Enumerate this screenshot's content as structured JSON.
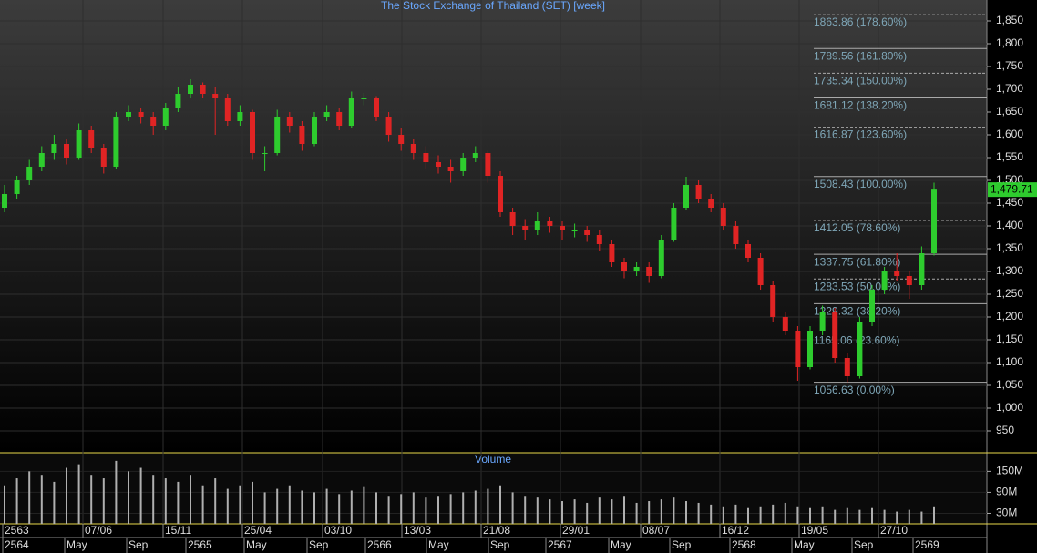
{
  "chart_data": {
    "type": "candlestick",
    "title": "The Stock Exchange of Thailand (SET) [week]",
    "up_color": "#2ecc2e",
    "down_color": "#e02424",
    "ylim": [
      902,
      1896
    ],
    "yticks": [
      950,
      {
        "value": 1000,
        "label": "1,000"
      },
      {
        "value": 1050,
        "label": "1,050"
      },
      {
        "value": 1100,
        "label": "1,100"
      },
      {
        "value": 1150,
        "label": "1,150"
      },
      {
        "value": 1200,
        "label": "1,200"
      },
      {
        "value": 1250,
        "label": "1,250"
      },
      {
        "value": 1300,
        "label": "1,300"
      },
      {
        "value": 1350,
        "label": "1,350"
      },
      {
        "value": 1400,
        "label": "1,400"
      },
      {
        "value": 1450,
        "label": "1,450"
      },
      {
        "value": 1500,
        "label": "1,500"
      },
      {
        "value": 1550,
        "label": "1,550"
      },
      {
        "value": 1600,
        "label": "1,600"
      },
      {
        "value": 1650,
        "label": "1,650"
      },
      {
        "value": 1700,
        "label": "1,700"
      },
      {
        "value": 1750,
        "label": "1,750"
      },
      {
        "value": 1800,
        "label": "1,800"
      },
      {
        "value": 1850,
        "label": "1,850"
      }
    ],
    "grid": true,
    "last": {
      "value": 1479.71,
      "label": "1,479.71"
    },
    "fib_levels": [
      {
        "value": 1863.86,
        "label": "1863.86 (178.60%)"
      },
      {
        "value": 1789.56,
        "label": "1789.56 (161.80%)"
      },
      {
        "value": 1735.34,
        "label": "1735.34 (150.00%)"
      },
      {
        "value": 1681.12,
        "label": "1681.12 (138.20%)"
      },
      {
        "value": 1616.87,
        "label": "1616.87 (123.60%)"
      },
      {
        "value": 1508.43,
        "label": "1508.43 (100.00%)"
      },
      {
        "value": 1412.05,
        "label": "1412.05 (78.60%)"
      },
      {
        "value": 1337.75,
        "label": "1337.75 (61.80%)"
      },
      {
        "value": 1283.53,
        "label": "1283.53 (50.00%)"
      },
      {
        "value": 1229.32,
        "label": "1229.32 (38.20%)"
      },
      {
        "value": 1165.06,
        "label": "1165.06 (23.60%)"
      },
      {
        "value": 1056.63,
        "label": "1056.63 (0.00%)"
      }
    ],
    "ohlc": [
      [
        1440,
        1490,
        1430,
        1470
      ],
      [
        1470,
        1510,
        1460,
        1500
      ],
      [
        1500,
        1545,
        1490,
        1530
      ],
      [
        1530,
        1575,
        1520,
        1560
      ],
      [
        1560,
        1600,
        1545,
        1580
      ],
      [
        1580,
        1590,
        1535,
        1550
      ],
      [
        1550,
        1625,
        1545,
        1610
      ],
      [
        1610,
        1620,
        1560,
        1570
      ],
      [
        1570,
        1580,
        1515,
        1530
      ],
      [
        1530,
        1650,
        1525,
        1640
      ],
      [
        1640,
        1665,
        1630,
        1650
      ],
      [
        1650,
        1660,
        1625,
        1640
      ],
      [
        1640,
        1650,
        1600,
        1620
      ],
      [
        1620,
        1670,
        1610,
        1660
      ],
      [
        1660,
        1705,
        1650,
        1690
      ],
      [
        1690,
        1722,
        1680,
        1710
      ],
      [
        1710,
        1715,
        1680,
        1690
      ],
      [
        1690,
        1705,
        1600,
        1680
      ],
      [
        1680,
        1690,
        1620,
        1630
      ],
      [
        1630,
        1665,
        1620,
        1650
      ],
      [
        1650,
        1655,
        1545,
        1560
      ],
      [
        1560,
        1575,
        1520,
        1560
      ],
      [
        1560,
        1655,
        1555,
        1640
      ],
      [
        1640,
        1650,
        1605,
        1620
      ],
      [
        1620,
        1630,
        1565,
        1580
      ],
      [
        1580,
        1650,
        1575,
        1640
      ],
      [
        1640,
        1665,
        1630,
        1650
      ],
      [
        1650,
        1660,
        1610,
        1620
      ],
      [
        1620,
        1695,
        1615,
        1680
      ],
      [
        1680,
        1692,
        1665,
        1680
      ],
      [
        1680,
        1685,
        1630,
        1640
      ],
      [
        1640,
        1650,
        1585,
        1600
      ],
      [
        1600,
        1615,
        1565,
        1580
      ],
      [
        1580,
        1590,
        1545,
        1560
      ],
      [
        1560,
        1575,
        1525,
        1540
      ],
      [
        1540,
        1555,
        1515,
        1530
      ],
      [
        1530,
        1545,
        1495,
        1520
      ],
      [
        1520,
        1560,
        1510,
        1550
      ],
      [
        1550,
        1575,
        1540,
        1560
      ],
      [
        1560,
        1565,
        1495,
        1510
      ],
      [
        1510,
        1520,
        1420,
        1430
      ],
      [
        1430,
        1440,
        1380,
        1400
      ],
      [
        1400,
        1415,
        1370,
        1390
      ],
      [
        1390,
        1430,
        1380,
        1410
      ],
      [
        1410,
        1420,
        1385,
        1400
      ],
      [
        1400,
        1410,
        1370,
        1390
      ],
      [
        1390,
        1405,
        1375,
        1390
      ],
      [
        1390,
        1400,
        1365,
        1380
      ],
      [
        1380,
        1390,
        1345,
        1360
      ],
      [
        1360,
        1370,
        1310,
        1320
      ],
      [
        1320,
        1330,
        1285,
        1300
      ],
      [
        1300,
        1320,
        1290,
        1310
      ],
      [
        1310,
        1320,
        1275,
        1290
      ],
      [
        1290,
        1380,
        1285,
        1370
      ],
      [
        1370,
        1450,
        1365,
        1440
      ],
      [
        1440,
        1508,
        1435,
        1490
      ],
      [
        1490,
        1500,
        1450,
        1460
      ],
      [
        1460,
        1470,
        1430,
        1440
      ],
      [
        1440,
        1450,
        1390,
        1400
      ],
      [
        1400,
        1410,
        1350,
        1360
      ],
      [
        1360,
        1370,
        1320,
        1330
      ],
      [
        1330,
        1340,
        1260,
        1270
      ],
      [
        1270,
        1280,
        1190,
        1200
      ],
      [
        1200,
        1210,
        1160,
        1170
      ],
      [
        1170,
        1180,
        1060,
        1090
      ],
      [
        1090,
        1180,
        1085,
        1170
      ],
      [
        1170,
        1225,
        1160,
        1210
      ],
      [
        1210,
        1220,
        1100,
        1110
      ],
      [
        1110,
        1120,
        1056.63,
        1070
      ],
      [
        1070,
        1200,
        1065,
        1190
      ],
      [
        1190,
        1270,
        1180,
        1260
      ],
      [
        1260,
        1310,
        1250,
        1300
      ],
      [
        1300,
        1340,
        1280,
        1290
      ],
      [
        1290,
        1300,
        1240,
        1270
      ],
      [
        1270,
        1355,
        1260,
        1340
      ],
      [
        1340,
        1495,
        1335,
        1479.71
      ]
    ],
    "volume": {
      "title": "Volume",
      "ylim": [
        0,
        203
      ],
      "yticks": [
        {
          "value": 30,
          "label": "30M"
        },
        {
          "value": 90,
          "label": "90M"
        },
        {
          "value": 150,
          "label": "150M"
        }
      ],
      "values": [
        110,
        130,
        150,
        140,
        120,
        160,
        170,
        140,
        130,
        180,
        150,
        160,
        140,
        130,
        120,
        140,
        110,
        130,
        100,
        110,
        120,
        90,
        100,
        110,
        95,
        90,
        100,
        85,
        95,
        105,
        90,
        80,
        85,
        90,
        75,
        80,
        85,
        90,
        95,
        100,
        110,
        90,
        80,
        75,
        70,
        65,
        70,
        60,
        75,
        70,
        80,
        60,
        65,
        70,
        75,
        65,
        60,
        55,
        50,
        55,
        45,
        50,
        55,
        60,
        50,
        45,
        50,
        40,
        45,
        40,
        45,
        40,
        35,
        40,
        35,
        50
      ]
    },
    "x_labels_top": [
      "2563",
      "07/06",
      "15/11",
      "25/04",
      "03/10",
      "13/03",
      "21/08",
      "29/01",
      "08/07",
      "16/12",
      "19/05",
      "27/10"
    ],
    "x_labels_bottom": [
      "2564",
      "May",
      "Sep",
      "2565",
      "May",
      "Sep",
      "2566",
      "May",
      "Sep",
      "2567",
      "May",
      "Sep",
      "2568",
      "May",
      "Sep",
      "2569"
    ]
  }
}
